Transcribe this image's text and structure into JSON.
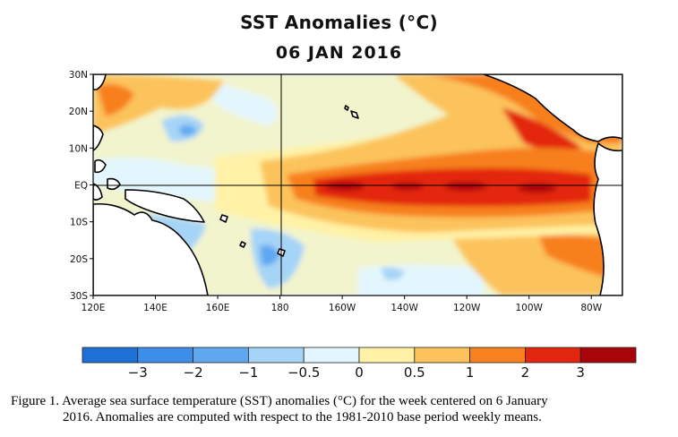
{
  "title": "SST Anomalies (°C)",
  "date": "06 JAN 2016",
  "map": {
    "lon_labels": [
      "120E",
      "140E",
      "160E",
      "180",
      "160W",
      "140W",
      "120W",
      "100W",
      "80W"
    ],
    "lat_labels": [
      "30N",
      "20N",
      "10N",
      "EQ",
      "10S",
      "20S",
      "30S"
    ],
    "lon_range": [
      120,
      290
    ],
    "lat_range": [
      -30,
      30
    ]
  },
  "colorbar": {
    "tick_labels": [
      "−3",
      "−2",
      "−1",
      "−0.5",
      "0",
      "0.5",
      "1",
      "2",
      "3"
    ],
    "colors": [
      "#1e6fd6",
      "#3d8ee8",
      "#5fa8f0",
      "#a6d4f7",
      "#e3f6fd",
      "#fff2a6",
      "#fcc35c",
      "#f7801f",
      "#e3260f",
      "#a8050a"
    ]
  },
  "caption": {
    "line1": "Figure 1. Average sea surface temperature (SST) anomalies (°C) for the week centered on 6 January",
    "line2": "2016.  Anomalies are computed with respect to the 1981-2010 base period weekly means."
  }
}
